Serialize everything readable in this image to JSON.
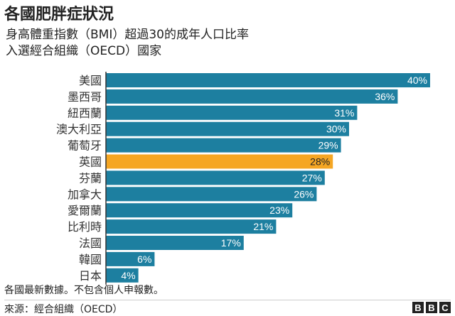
{
  "title": "各國肥胖症狀況",
  "subtitle_lines": [
    "身高體重指數（BMI）超過30的成年人口比率",
    "入選經合組織（OECD）國家"
  ],
  "note": "各國最新數據。不包含個人申報數。",
  "source": "來源：經合組織（OECD）",
  "logo": [
    "B",
    "B",
    "C"
  ],
  "colors": {
    "bar": "#1d7fa0",
    "highlight": "#f5a623",
    "axis": "#333333",
    "label_in": "#ffffff",
    "label_out": "#222222"
  },
  "chart_data": {
    "type": "bar",
    "orientation": "horizontal",
    "categories": [
      "美國",
      "墨西哥",
      "紐西蘭",
      "澳大利亞",
      "葡萄牙",
      "英國",
      "芬蘭",
      "加拿大",
      "愛爾蘭",
      "比利時",
      "法國",
      "韓國",
      "日本"
    ],
    "values": [
      40,
      36,
      31,
      30,
      29,
      28,
      27,
      26,
      23,
      21,
      17,
      6,
      4
    ],
    "value_labels": [
      "40%",
      "36%",
      "31%",
      "30%",
      "29%",
      "28%",
      "27%",
      "26%",
      "23%",
      "21%",
      "17%",
      "6%",
      "4%"
    ],
    "highlight": "英國",
    "xlim": [
      0,
      40
    ],
    "xlabel": "",
    "ylabel": "",
    "grid": false,
    "legend": "none"
  }
}
